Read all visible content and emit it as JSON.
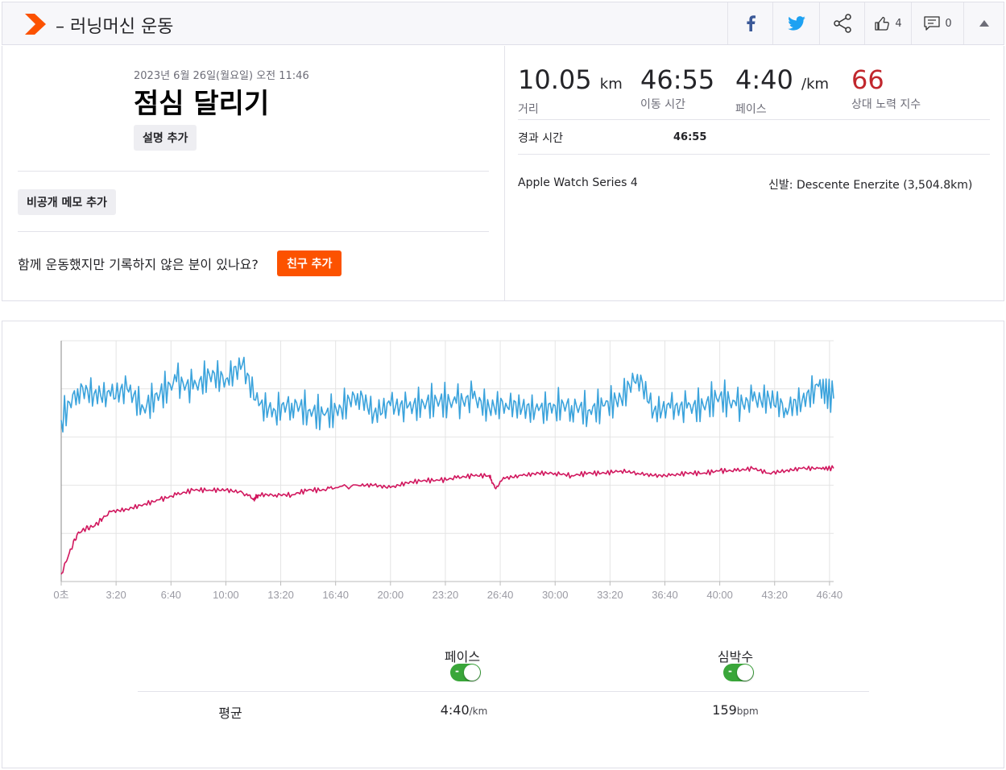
{
  "header": {
    "title": "– 러닝머신 운동",
    "kudos_count": "4",
    "comments_count": "0",
    "icons": [
      "strava-logo-icon",
      "facebook-icon",
      "twitter-icon",
      "share-icon",
      "thumbs-up-icon",
      "comment-icon",
      "caret-up-icon"
    ],
    "brand_color": "#fc5200"
  },
  "activity": {
    "date": "2023년 6월 26일(월요일) 오전 11:46",
    "name": "점심 달리기",
    "add_description": "설명 추가",
    "add_private_note": "비공개 메모 추가",
    "friend_question": "함께 운동했지만 기록하지 않은 분이 있나요?",
    "add_friend": "친구 추가"
  },
  "stats": {
    "distance": {
      "value": "10.05",
      "unit": "km",
      "label": "거리"
    },
    "moving_time": {
      "value": "46:55",
      "label": "이동 시간"
    },
    "pace": {
      "value": "4:40",
      "unit": "/km",
      "label": "페이스"
    },
    "relative_effort": {
      "value": "66",
      "label": "상대 노력 지수",
      "color": "#c1272d"
    },
    "elapsed_label": "경과 시간",
    "elapsed_value": "46:55",
    "device": "Apple Watch Series 4",
    "shoes_label": "신발:",
    "shoes": "Descente Enerzite (3,504.8km)"
  },
  "legend": {
    "pace_label": "페이스",
    "hr_label": "심박수",
    "avg_label": "평균",
    "pace_avg": "4:40",
    "pace_unit": "/km",
    "hr_avg": "159",
    "hr_unit": "bpm",
    "toggle_dash": "-"
  },
  "chart_data": {
    "type": "line",
    "x_tick_labels": [
      "0초",
      "3:20",
      "6:40",
      "10:00",
      "13:20",
      "16:40",
      "20:00",
      "23:20",
      "26:40",
      "30:00",
      "33:20",
      "36:40",
      "40:00",
      "43:20",
      "46:40"
    ],
    "x_tick_seconds": [
      0,
      200,
      400,
      600,
      800,
      1000,
      1200,
      1400,
      1600,
      1800,
      2000,
      2200,
      2400,
      2600,
      2800
    ],
    "x_range": [
      0,
      2815
    ],
    "grid": true,
    "series": [
      {
        "name": "페이스",
        "color": "#3ba3dc",
        "scale_range": [
          0,
          100
        ],
        "x": [
          0,
          60,
          120,
          180,
          240,
          300,
          360,
          420,
          480,
          540,
          600,
          660,
          720,
          780,
          840,
          900,
          960,
          1020,
          1080,
          1140,
          1200,
          1260,
          1320,
          1380,
          1440,
          1500,
          1560,
          1620,
          1680,
          1740,
          1800,
          1860,
          1920,
          1980,
          2040,
          2100,
          2160,
          2220,
          2280,
          2340,
          2400,
          2460,
          2520,
          2580,
          2640,
          2700,
          2760,
          2815
        ],
        "values": [
          67,
          80,
          78,
          77,
          80,
          72,
          78,
          83,
          80,
          86,
          84,
          90,
          73,
          71,
          74,
          71,
          69,
          72,
          78,
          70,
          73,
          72,
          74,
          75,
          74,
          76,
          72,
          74,
          72,
          71,
          73,
          73,
          71,
          73,
          76,
          86,
          71,
          72,
          72,
          73,
          77,
          73,
          75,
          76,
          72,
          75,
          81,
          76
        ]
      },
      {
        "name": "심박수",
        "color": "#d1175e",
        "scale_range": [
          0,
          100
        ],
        "x": [
          0,
          30,
          60,
          90,
          120,
          150,
          180,
          240,
          300,
          360,
          420,
          480,
          540,
          600,
          660,
          700,
          720,
          780,
          840,
          900,
          960,
          1000,
          1080,
          1140,
          1200,
          1260,
          1320,
          1380,
          1440,
          1500,
          1560,
          1580,
          1620,
          1680,
          1740,
          1800,
          1860,
          1920,
          1980,
          2040,
          2100,
          2160,
          2220,
          2280,
          2340,
          2400,
          2460,
          2520,
          2580,
          2640,
          2700,
          2760,
          2815
        ],
        "values": [
          3,
          12,
          20,
          22,
          23,
          26,
          29,
          30,
          32,
          34,
          36,
          38,
          38,
          38,
          37,
          34,
          36,
          36,
          36,
          38,
          38,
          39,
          40,
          40,
          39,
          41,
          42,
          42,
          43,
          44,
          44,
          39,
          43,
          44,
          45,
          45,
          44,
          45,
          45,
          46,
          45,
          44,
          44,
          45,
          45,
          46,
          46,
          47,
          45,
          46,
          47,
          47,
          47
        ]
      }
    ]
  }
}
